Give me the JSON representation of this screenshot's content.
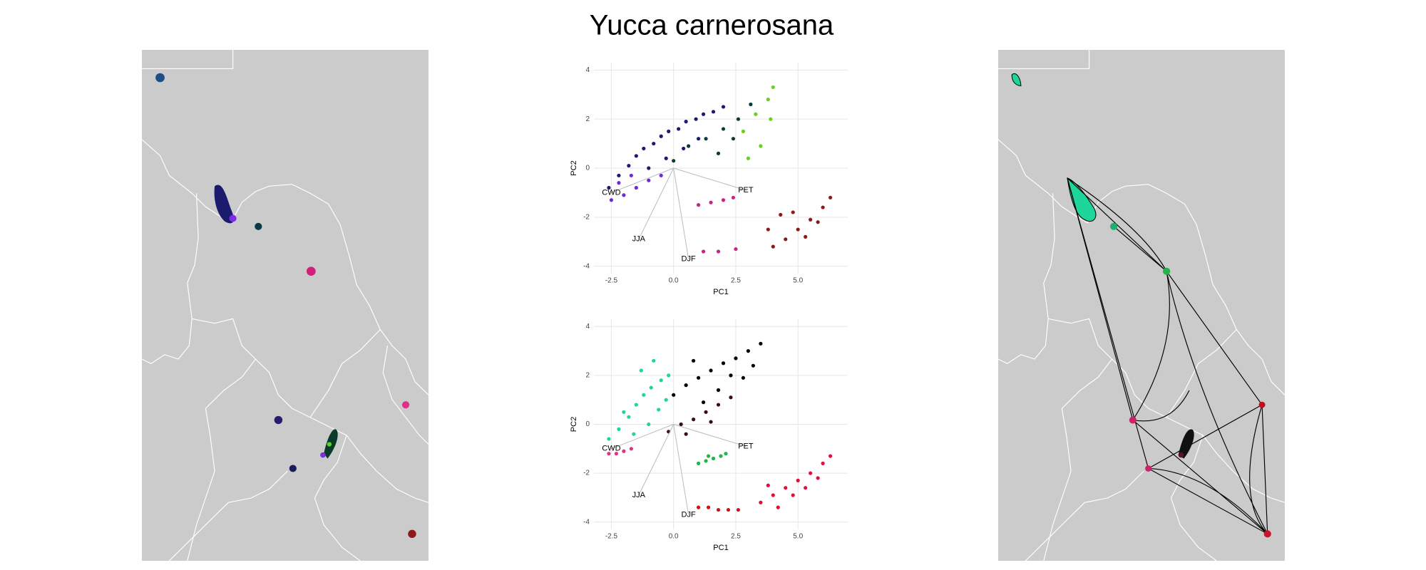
{
  "title": "Yucca carnerosana",
  "chart_data": [
    {
      "type": "scatter",
      "xlabel": "PC1",
      "ylabel": "PC2",
      "xlim": [
        -3.2,
        7
      ],
      "ylim": [
        -4.3,
        4.3
      ],
      "xticks": [
        -2.5,
        {
          "value": 0,
          "label": "0.0"
        },
        2.5,
        {
          "value": 5,
          "label": "5.0"
        }
      ],
      "yticks": [
        -4,
        -2,
        0,
        2,
        4
      ],
      "grid": true,
      "annotations": [
        {
          "text": "CWD",
          "x": -2.5,
          "y": -1
        },
        {
          "text": "PET",
          "x": 2.9,
          "y": -0.9
        },
        {
          "text": "JJA",
          "x": -1.4,
          "y": -2.9
        },
        {
          "text": "DJF",
          "x": 0.6,
          "y": -3.7
        }
      ],
      "series": [
        {
          "color": "#1a1a6e",
          "x": [
            -2.6,
            -2.2,
            -1.8,
            -1.5,
            -1.2,
            -0.8,
            -0.5,
            -0.2,
            0.2,
            0.5,
            0.9,
            1.2,
            1.6,
            2.0,
            -1.0,
            -0.3,
            0.4,
            1.0
          ],
          "y": [
            -0.8,
            -0.3,
            0.1,
            0.5,
            0.8,
            1.0,
            1.3,
            1.5,
            1.6,
            1.9,
            2.0,
            2.2,
            2.3,
            2.5,
            0.0,
            0.4,
            0.8,
            1.2
          ]
        },
        {
          "color": "#6a2bd8",
          "x": [
            -2.5,
            -2.0,
            -1.5,
            -1.0,
            -0.5,
            -2.2,
            -1.7
          ],
          "y": [
            -1.3,
            -1.1,
            -0.8,
            -0.5,
            -0.3,
            -0.6,
            -0.3
          ]
        },
        {
          "color": "#0a3a3a",
          "x": [
            0,
            0.6,
            1.3,
            2.0,
            2.6,
            3.1,
            1.8,
            2.4
          ],
          "y": [
            0.3,
            0.9,
            1.2,
            1.6,
            2.0,
            2.6,
            0.6,
            1.2
          ]
        },
        {
          "color": "#6ccf1e",
          "x": [
            2.8,
            3.3,
            3.8,
            4.0,
            3.5,
            3.0,
            3.9
          ],
          "y": [
            1.5,
            2.2,
            2.8,
            3.3,
            0.9,
            0.4,
            2.0
          ]
        },
        {
          "color": "#cc2288",
          "x": [
            1.0,
            1.5,
            2.0,
            2.4,
            1.2,
            1.8,
            2.5
          ],
          "y": [
            -1.5,
            -1.4,
            -1.3,
            -1.2,
            -3.4,
            -3.4,
            -3.3
          ]
        },
        {
          "color": "#8b1a1a",
          "x": [
            4.0,
            4.5,
            5.0,
            5.5,
            6.0,
            6.3,
            4.8,
            5.3,
            5.8,
            3.8,
            4.3
          ],
          "y": [
            -3.2,
            -2.9,
            -2.5,
            -2.1,
            -1.6,
            -1.2,
            -1.8,
            -2.8,
            -2.2,
            -2.5,
            -1.9
          ]
        }
      ]
    },
    {
      "type": "scatter",
      "xlabel": "PC1",
      "ylabel": "PC2",
      "xlim": [
        -3.2,
        7
      ],
      "ylim": [
        -4.3,
        4.3
      ],
      "xticks": [
        -2.5,
        {
          "value": 0,
          "label": "0.0"
        },
        2.5,
        {
          "value": 5,
          "label": "5.0"
        }
      ],
      "yticks": [
        -4,
        -2,
        0,
        2,
        4
      ],
      "grid": true,
      "annotations": [
        {
          "text": "CWD",
          "x": -2.5,
          "y": -1
        },
        {
          "text": "PET",
          "x": 2.9,
          "y": -0.9
        },
        {
          "text": "JJA",
          "x": -1.4,
          "y": -2.9
        },
        {
          "text": "DJF",
          "x": 0.6,
          "y": -3.7
        }
      ],
      "series": [
        {
          "color": "#1fd69a",
          "x": [
            -2.6,
            -2.2,
            -1.8,
            -1.5,
            -1.2,
            -0.9,
            -0.5,
            -0.2,
            -1.6,
            -1.0,
            -0.6,
            -2.0,
            -1.3,
            -0.8,
            -0.3
          ],
          "y": [
            -0.6,
            -0.2,
            0.3,
            0.8,
            1.2,
            1.5,
            1.8,
            2.0,
            -0.4,
            0.0,
            0.6,
            0.5,
            2.2,
            2.6,
            1.0
          ]
        },
        {
          "color": "#000000",
          "x": [
            0,
            0.5,
            1.0,
            1.5,
            2.0,
            2.5,
            3.0,
            3.5,
            0.8,
            1.8,
            2.8,
            3.2,
            1.2,
            2.3
          ],
          "y": [
            1.2,
            1.6,
            1.9,
            2.2,
            2.5,
            2.7,
            3.0,
            3.3,
            2.6,
            1.4,
            1.9,
            2.4,
            0.9,
            2.0
          ]
        },
        {
          "color": "#3a0a1f",
          "x": [
            -0.2,
            0.3,
            0.8,
            1.3,
            1.8,
            2.3,
            0.5,
            1.5
          ],
          "y": [
            -0.3,
            0.0,
            0.2,
            0.5,
            0.8,
            1.1,
            -0.4,
            0.1
          ]
        },
        {
          "color": "#22b34a",
          "x": [
            1.0,
            1.3,
            1.6,
            1.9,
            2.1,
            1.4
          ],
          "y": [
            -1.6,
            -1.5,
            -1.4,
            -1.3,
            -1.2,
            -1.3
          ]
        },
        {
          "color": "#e0103a",
          "x": [
            3.5,
            4.0,
            4.5,
            5.0,
            5.5,
            6.0,
            6.3,
            4.2,
            4.8,
            5.3,
            5.8,
            3.8
          ],
          "y": [
            -3.2,
            -2.9,
            -2.6,
            -2.3,
            -2.0,
            -1.6,
            -1.3,
            -3.4,
            -2.9,
            -2.6,
            -2.2,
            -2.5
          ]
        },
        {
          "color": "#d41010",
          "x": [
            1.0,
            1.4,
            1.8,
            2.2,
            2.6
          ],
          "y": [
            -3.4,
            -3.4,
            -3.5,
            -3.5,
            -3.5
          ]
        },
        {
          "color": "#e0308a",
          "x": [
            -2.6,
            -2.3,
            -2.0,
            -1.7
          ],
          "y": [
            -1.2,
            -1.2,
            -1.1,
            -1.0
          ]
        }
      ]
    }
  ]
}
